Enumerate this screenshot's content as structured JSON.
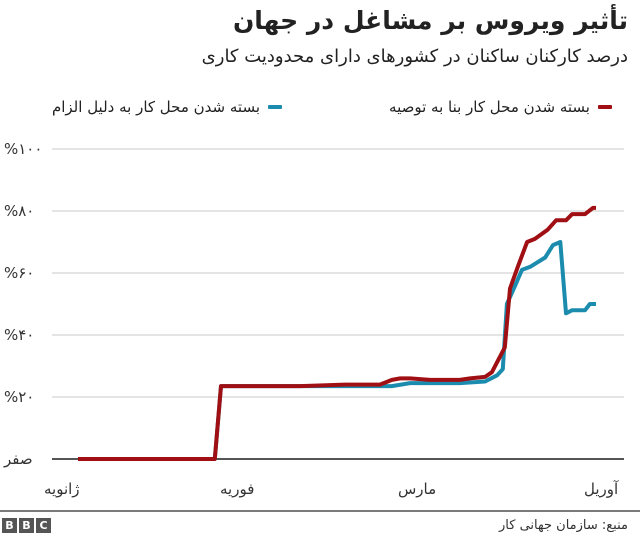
{
  "header": {
    "title": "تأثیر ویروس بر مشاغل در جهان",
    "subtitle": "درصد کارکنان ساکنان در کشورهای دارای محدودیت کاری"
  },
  "legend": {
    "items": [
      {
        "label": "بسته شدن محل کار بنا به توصیه",
        "color": "#a00f13"
      },
      {
        "label": "بسته شدن محل کار به دلیل الزام",
        "color": "#1c8cae"
      }
    ]
  },
  "y_axis": {
    "ticks": [
      {
        "label": "%۱۰۰",
        "value": 100
      },
      {
        "label": "%۸۰",
        "value": 80
      },
      {
        "label": "%۶۰",
        "value": 60
      },
      {
        "label": "%۴۰",
        "value": 40
      },
      {
        "label": "%۲۰",
        "value": 20
      },
      {
        "label": "صفر",
        "value": 0
      }
    ]
  },
  "x_axis": {
    "ticks": [
      {
        "label": "ژانویه"
      },
      {
        "label": "فوریه"
      },
      {
        "label": "مارس"
      },
      {
        "label": "آوریل"
      }
    ]
  },
  "footer": {
    "source": "منبع: سازمان جهانی کار",
    "logo": [
      "B",
      "B",
      "C"
    ]
  },
  "chart_data": {
    "type": "line",
    "title": "تأثیر ویروس بر مشاغل در جهان",
    "subtitle": "درصد کارکنان ساکنان در کشورهای دارای محدودیت کاری",
    "xlabel": "",
    "ylabel": "",
    "ylim": [
      0,
      100
    ],
    "grid": true,
    "legend_position": "top",
    "x_tick_labels": [
      "ژانویه",
      "فوریه",
      "مارس",
      "آوریل"
    ],
    "y_tick_labels": [
      "صفر",
      "%۲۰",
      "%۴۰",
      "%۶۰",
      "%۸۰",
      "%۱۰۰"
    ],
    "x_domain": [
      0,
      100
    ],
    "series": [
      {
        "name": "بسته شدن محل کار بنا به توصیه",
        "color": "#a00f13",
        "points": [
          [
            0,
            0
          ],
          [
            26.4,
            0
          ],
          [
            27.6,
            23.5
          ],
          [
            42.9,
            23.5
          ],
          [
            51.5,
            24
          ],
          [
            58.3,
            24
          ],
          [
            60.6,
            25.5
          ],
          [
            62.2,
            26
          ],
          [
            64.1,
            26
          ],
          [
            68,
            25.5
          ],
          [
            73.7,
            25.5
          ],
          [
            75.7,
            26
          ],
          [
            78.6,
            26.5
          ],
          [
            79.9,
            28
          ],
          [
            82.4,
            36
          ],
          [
            83.4,
            55
          ],
          [
            84.9,
            62
          ],
          [
            86.7,
            70
          ],
          [
            88.2,
            71
          ],
          [
            90.7,
            74
          ],
          [
            92.3,
            77
          ],
          [
            94.2,
            77
          ],
          [
            95.4,
            79
          ],
          [
            97.9,
            79
          ],
          [
            99.4,
            81
          ],
          [
            100,
            81
          ]
        ]
      },
      {
        "name": "بسته شدن محل کار به دلیل الزام",
        "color": "#1c8cae",
        "points": [
          [
            0,
            0
          ],
          [
            26.4,
            0
          ],
          [
            27.6,
            23.5
          ],
          [
            42.9,
            23.5
          ],
          [
            51.5,
            23.5
          ],
          [
            60.6,
            23.5
          ],
          [
            64.1,
            24.5
          ],
          [
            68,
            24.5
          ],
          [
            73.7,
            24.5
          ],
          [
            78.6,
            25
          ],
          [
            80.9,
            27
          ],
          [
            82.0,
            29
          ],
          [
            82.8,
            50
          ],
          [
            84.4,
            56
          ],
          [
            85.7,
            61
          ],
          [
            87.3,
            62
          ],
          [
            90.2,
            65
          ],
          [
            91.7,
            69
          ],
          [
            93.1,
            70
          ],
          [
            94.2,
            47
          ],
          [
            95.4,
            48
          ],
          [
            97.9,
            48
          ],
          [
            98.8,
            50
          ],
          [
            100,
            50
          ]
        ]
      }
    ]
  }
}
